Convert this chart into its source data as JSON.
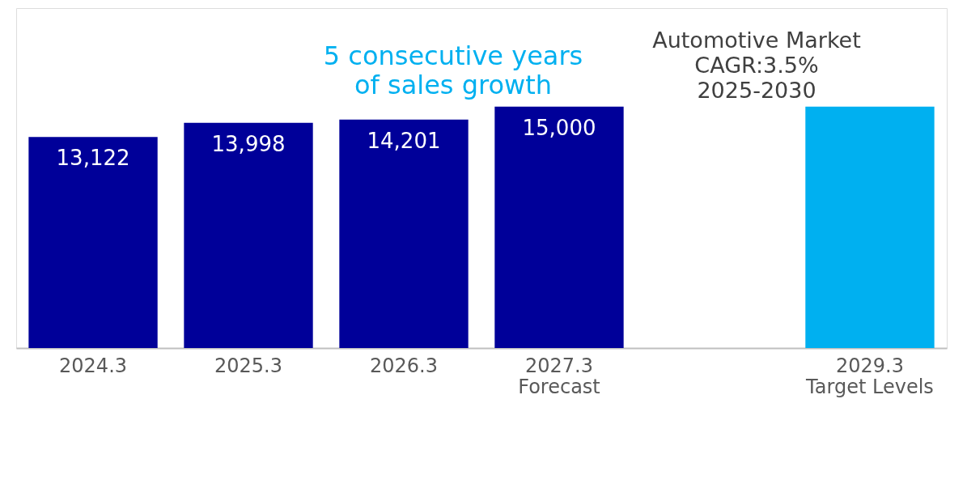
{
  "chart_data": {
    "type": "bar",
    "categories": [
      "2024.3",
      "2025.3",
      "2026.3",
      "2027.3\nForecast",
      null,
      "2029.3\nTarget Levels"
    ],
    "values": [
      13122,
      13998,
      14201,
      15000,
      null,
      15000
    ],
    "colors": [
      "#000099",
      "#000099",
      "#000099",
      "#000099",
      "#000099",
      "#00b0f0"
    ],
    "value_labels": [
      "13,122",
      "13,998",
      "14,201",
      "15,000",
      null,
      null
    ],
    "annotations": [
      "5 consecutive years\nof sales growth",
      "Automotive Market\nCAGR:3.5%\n2025-2030"
    ]
  }
}
